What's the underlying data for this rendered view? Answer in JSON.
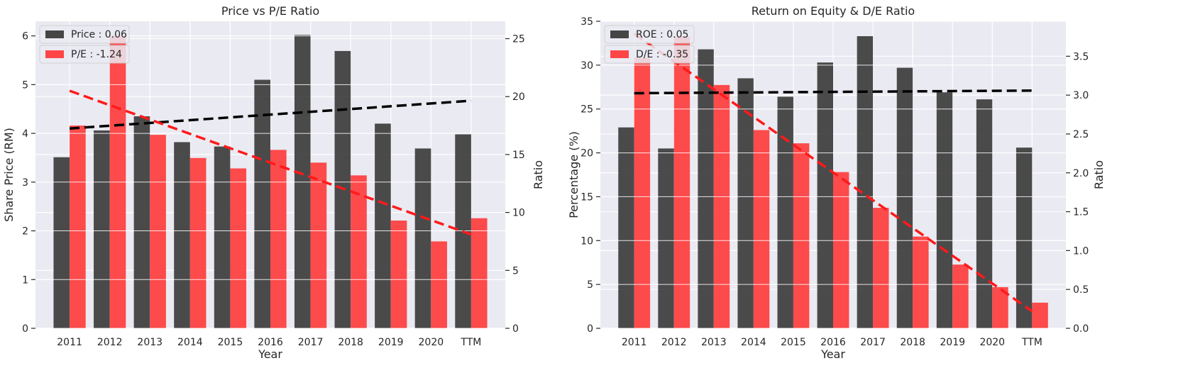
{
  "chart_data": [
    {
      "type": "bar",
      "title": "Price vs P/E Ratio",
      "xlabel": "Year",
      "ylabel_left": "Share Price (RM)",
      "ylabel_right": "Ratio",
      "categories": [
        "2011",
        "2012",
        "2013",
        "2014",
        "2015",
        "2016",
        "2017",
        "2018",
        "2019",
        "2020",
        "TTM"
      ],
      "ylim_left": [
        0,
        6.3
      ],
      "ylim_right": [
        0,
        26.5
      ],
      "yticks_left": [
        "0",
        "1",
        "2",
        "3",
        "4",
        "5",
        "6"
      ],
      "yticks_right": [
        "0",
        "5",
        "10",
        "15",
        "20",
        "25"
      ],
      "series": [
        {
          "name": "Price : 0.06",
          "axis": "left",
          "color": "#333333",
          "values": [
            3.51,
            4.06,
            4.35,
            3.82,
            3.73,
            5.1,
            6.02,
            5.69,
            4.2,
            3.69,
            3.98
          ],
          "trend": [
            4.1,
            4.67
          ]
        },
        {
          "name": "P/E : -1.24",
          "axis": "right",
          "color": "#ff3333",
          "values": [
            17.5,
            25.3,
            16.7,
            14.7,
            13.8,
            15.4,
            14.3,
            13.2,
            9.3,
            7.5,
            9.5
          ],
          "trend": [
            20.5,
            8.1
          ]
        }
      ],
      "grid": true,
      "legend": "top-left"
    },
    {
      "type": "bar",
      "title": "Return on Equity & D/E Ratio",
      "xlabel": "Year",
      "ylabel_left": "Percentage (%)",
      "ylabel_right": "Ratio",
      "categories": [
        "2011",
        "2012",
        "2013",
        "2014",
        "2015",
        "2016",
        "2017",
        "2018",
        "2019",
        "2020",
        "TTM"
      ],
      "ylim_left": [
        0,
        35
      ],
      "ylim_right": [
        0,
        3.95
      ],
      "yticks_left": [
        "0",
        "5",
        "10",
        "15",
        "20",
        "25",
        "30",
        "35"
      ],
      "yticks_right": [
        "0.0",
        "0.5",
        "1.0",
        "1.5",
        "2.0",
        "2.5",
        "3.0",
        "3.5"
      ],
      "series": [
        {
          "name": "ROE : 0.05",
          "axis": "left",
          "color": "#333333",
          "values": [
            22.9,
            20.5,
            31.8,
            28.5,
            26.4,
            30.3,
            33.3,
            29.7,
            26.9,
            26.1,
            20.6
          ],
          "trend": [
            26.8,
            27.1
          ]
        },
        {
          "name": "D/E : -0.35",
          "axis": "right",
          "color": "#ff3333",
          "values": [
            3.48,
            3.75,
            3.13,
            2.55,
            2.38,
            2.01,
            1.55,
            1.18,
            0.82,
            0.53,
            0.33
          ],
          "trend": [
            3.79,
            0.22
          ]
        }
      ],
      "grid": true,
      "legend": "top-left"
    }
  ]
}
